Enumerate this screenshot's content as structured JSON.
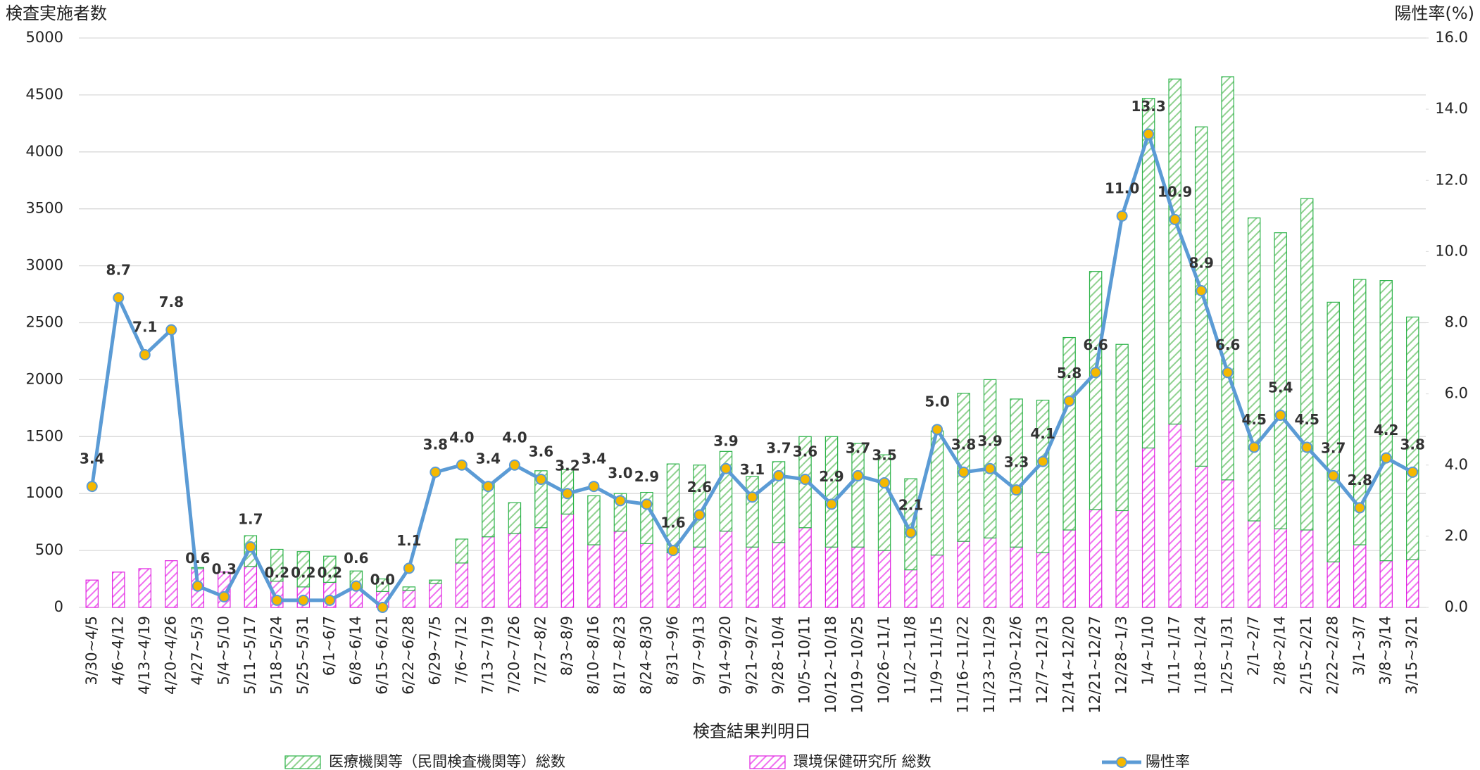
{
  "chart_data": {
    "type": "bar-line",
    "y_title": "検査実施者数",
    "y2_title": "陽性率(%)",
    "x_title": "検査結果判明日",
    "categories": [
      "3/30~4/5",
      "4/6~4/12",
      "4/13~4/19",
      "4/20~4/26",
      "4/27~5/3",
      "5/4~5/10",
      "5/11~5/17",
      "5/18~5/24",
      "5/25~5/31",
      "6/1~6/7",
      "6/8~6/14",
      "6/15~6/21",
      "6/22~6/28",
      "6/29~7/5",
      "7/6~7/12",
      "7/13~7/19",
      "7/20~7/26",
      "7/27~8/2",
      "8/3~8/9",
      "8/10~8/16",
      "8/17~8/23",
      "8/24~8/30",
      "8/31~9/6",
      "9/7~9/13",
      "9/14~9/20",
      "9/21~9/27",
      "9/28~10/4",
      "10/5~10/11",
      "10/12~10/18",
      "10/19~10/25",
      "10/26~11/1",
      "11/2~11/8",
      "11/9~11/15",
      "11/16~11/22",
      "11/23~11/29",
      "11/30~12/6",
      "12/7~12/13",
      "12/14~12/20",
      "12/21~12/27",
      "12/28~1/3",
      "1/4~1/10",
      "1/11~1/17",
      "1/18~1/24",
      "1/25~1/31",
      "2/1~2/7",
      "2/8~2/14",
      "2/15~2/21",
      "2/22~2/28",
      "3/1~3/7",
      "3/8~3/14",
      "3/15~3/21"
    ],
    "series": [
      {
        "name": "環境保健研究所 総数",
        "kind": "bar",
        "color": "#e020e0",
        "values": [
          240,
          310,
          340,
          410,
          340,
          310,
          360,
          230,
          180,
          220,
          170,
          140,
          150,
          210,
          390,
          620,
          650,
          700,
          820,
          550,
          670,
          560,
          480,
          530,
          670,
          530,
          570,
          700,
          530,
          530,
          500,
          330,
          460,
          580,
          610,
          530,
          480,
          680,
          860,
          850,
          1400,
          1610,
          1240,
          1120,
          760,
          690,
          680,
          400,
          550,
          410,
          420
        ]
      },
      {
        "name": "医療機関等（民間検査機関等）総数",
        "kind": "bar",
        "color": "#2db34a",
        "values": [
          0,
          0,
          0,
          0,
          10,
          0,
          270,
          280,
          310,
          230,
          150,
          110,
          30,
          30,
          210,
          470,
          270,
          500,
          390,
          430,
          330,
          450,
          780,
          720,
          700,
          620,
          710,
          800,
          970,
          910,
          840,
          800,
          1090,
          1300,
          1390,
          1300,
          1340,
          1690,
          2090,
          1460,
          3070,
          3030,
          2980,
          3540,
          2660,
          2600,
          2910,
          2280,
          2330,
          2460,
          2130
        ]
      },
      {
        "name": "陽性率",
        "kind": "line",
        "axis": "y2",
        "color": "#5b9bd5",
        "marker_color": "#f5b800",
        "values": [
          3.4,
          8.7,
          7.1,
          7.8,
          0.6,
          0.3,
          1.7,
          0.2,
          0.2,
          0.2,
          0.6,
          0,
          1.1,
          3.8,
          4,
          3.4,
          4,
          3.6,
          3.2,
          3.4,
          3,
          2.9,
          1.6,
          2.6,
          3.9,
          3.1,
          3.7,
          3.6,
          2.9,
          3.7,
          3.5,
          2.1,
          5,
          3.8,
          3.9,
          3.3,
          4.1,
          5.8,
          6.6,
          11,
          13.3,
          10.9,
          8.9,
          6.6,
          4.5,
          5.4,
          4.5,
          3.7,
          2.8,
          4.2,
          3.8
        ],
        "value_labels": [
          "3.4",
          "8.7",
          "7.1",
          "7.8",
          "0.6",
          "0.3",
          "1.7",
          "0.2",
          "0.2",
          "0.2",
          "0.6",
          "0.0",
          "1.1",
          "3.8",
          "4.0",
          "3.4",
          "4.0",
          "3.6",
          "3.2",
          "3.4",
          "3.0",
          "2.9",
          "1.6",
          "2.6",
          "3.9",
          "3.1",
          "3.7",
          "3.6",
          "2.9",
          "3.7",
          "3.5",
          "2.1",
          "5.0",
          "3.8",
          "3.9",
          "3.3",
          "4.1",
          "5.8",
          "6.6",
          "11.0",
          "13.3",
          "10.9",
          "8.9",
          "6.6",
          "4.5",
          "5.4",
          "4.5",
          "3.7",
          "2.8",
          "4.2",
          "3.8"
        ]
      }
    ],
    "ylim": [
      0,
      5000
    ],
    "yticks": [
      0,
      500,
      1000,
      1500,
      2000,
      2500,
      3000,
      3500,
      4000,
      4500,
      5000
    ],
    "y2lim": [
      0,
      16
    ],
    "y2ticks": [
      {
        "value": 0,
        "label": "0.0"
      },
      {
        "value": 2,
        "label": "2.0"
      },
      {
        "value": 4,
        "label": "4.0"
      },
      {
        "value": 6,
        "label": "6.0"
      },
      {
        "value": 8,
        "label": "8.0"
      },
      {
        "value": 10,
        "label": "10.0"
      },
      {
        "value": 12,
        "label": "12.0"
      },
      {
        "value": 14,
        "label": "14.0"
      },
      {
        "value": 16,
        "label": "16.0"
      }
    ],
    "legend_order": [
      1,
      0,
      2
    ],
    "grid": true
  }
}
